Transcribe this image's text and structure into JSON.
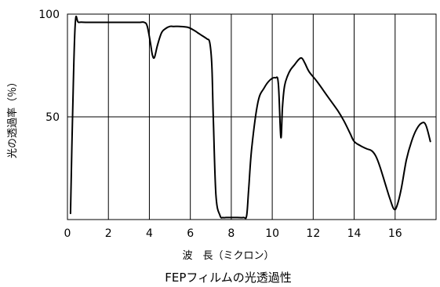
{
  "chart_data": {
    "type": "line",
    "title": "FEPフィルムの光透過性",
    "xlabel": "波　長（ミクロン）",
    "ylabel": "光の透過率（％）",
    "xlim": [
      0,
      18
    ],
    "ylim": [
      0,
      100
    ],
    "xticks": [
      0,
      2,
      4,
      6,
      8,
      10,
      12,
      14,
      16
    ],
    "yticks": [
      50,
      100
    ],
    "x_grid": [
      2,
      4,
      6,
      8,
      10,
      12,
      14,
      16
    ],
    "y_grid": [
      50
    ],
    "grid": true,
    "series": [
      {
        "x": [
          0.15,
          0.25,
          0.38,
          0.55,
          1.0,
          2.0,
          3.0,
          3.5,
          3.75,
          3.9,
          4.05,
          4.15,
          4.25,
          4.4,
          4.6,
          4.8,
          5.0,
          5.2,
          5.5,
          5.9,
          6.2,
          6.35,
          6.5,
          6.8,
          6.95,
          7.05,
          7.12,
          7.25,
          7.45,
          7.6,
          7.75,
          7.95,
          8.3,
          8.6,
          8.75,
          8.85,
          9.0,
          9.3,
          9.6,
          9.9,
          10.15,
          10.3,
          10.42,
          10.5,
          10.6,
          10.75,
          10.9,
          11.1,
          11.3,
          11.45,
          11.6,
          11.8,
          12.2,
          12.7,
          13.2,
          13.5,
          13.8,
          14.0,
          14.3,
          14.6,
          14.85,
          15.05,
          15.25,
          15.5,
          15.75,
          15.95,
          16.1,
          16.3,
          16.55,
          16.8,
          17.05,
          17.3,
          17.5,
          17.72
        ],
        "values": [
          3,
          50,
          95,
          96,
          96,
          96,
          96,
          96,
          96,
          94,
          86,
          80,
          79,
          85,
          91,
          93,
          94,
          94,
          94,
          93.5,
          92,
          91,
          90,
          88,
          86,
          75,
          50,
          12,
          2,
          1,
          1,
          1,
          1,
          1,
          2,
          15,
          35,
          57,
          64,
          68,
          69,
          66,
          40,
          55,
          65,
          70,
          73,
          75.5,
          78,
          78.5,
          76,
          72,
          67,
          60,
          53,
          48,
          42,
          38,
          36,
          34.5,
          33.5,
          31,
          26,
          18,
          10,
          5,
          7,
          15,
          29,
          38,
          44,
          47,
          46,
          38
        ]
      }
    ]
  }
}
